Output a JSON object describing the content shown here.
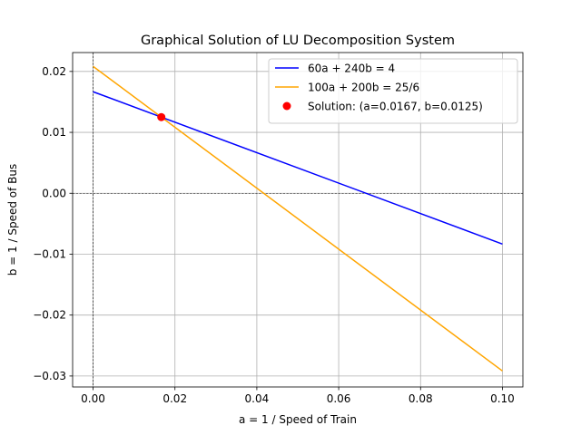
{
  "chart_data": {
    "type": "line",
    "title": "Graphical Solution of LU Decomposition System",
    "xlabel": "a = 1 / Speed of Train",
    "ylabel": "b = 1 / Speed of Bus",
    "xlim": [
      -0.005,
      0.105
    ],
    "ylim": [
      -0.0318,
      0.0231
    ],
    "xticks": [
      0.0,
      0.02,
      0.04,
      0.06,
      0.08,
      0.1
    ],
    "xtick_labels": [
      "0.00",
      "0.02",
      "0.04",
      "0.06",
      "0.08",
      "0.10"
    ],
    "yticks": [
      -0.03,
      -0.02,
      -0.01,
      0.0,
      0.01,
      0.02
    ],
    "ytick_labels": [
      "−0.03",
      "−0.02",
      "−0.01",
      "0.00",
      "0.01",
      "0.02"
    ],
    "grid": true,
    "reference_lines": {
      "x": 0,
      "y": 0,
      "style": "dashed"
    },
    "legend_position": "top-right",
    "series": [
      {
        "name": "60a + 240b = 4",
        "color": "#0000ff",
        "x": [
          0.0,
          0.1
        ],
        "y": [
          0.016667,
          -0.008333
        ]
      },
      {
        "name": "100a + 200b = 25/6",
        "color": "#ffa500",
        "x": [
          0.0,
          0.1
        ],
        "y": [
          0.020833,
          -0.029167
        ]
      }
    ],
    "points": [
      {
        "name": "Solution: (a=0.0167, b=0.0125)",
        "color": "#ff0000",
        "x": 0.016667,
        "y": 0.0125
      }
    ]
  }
}
